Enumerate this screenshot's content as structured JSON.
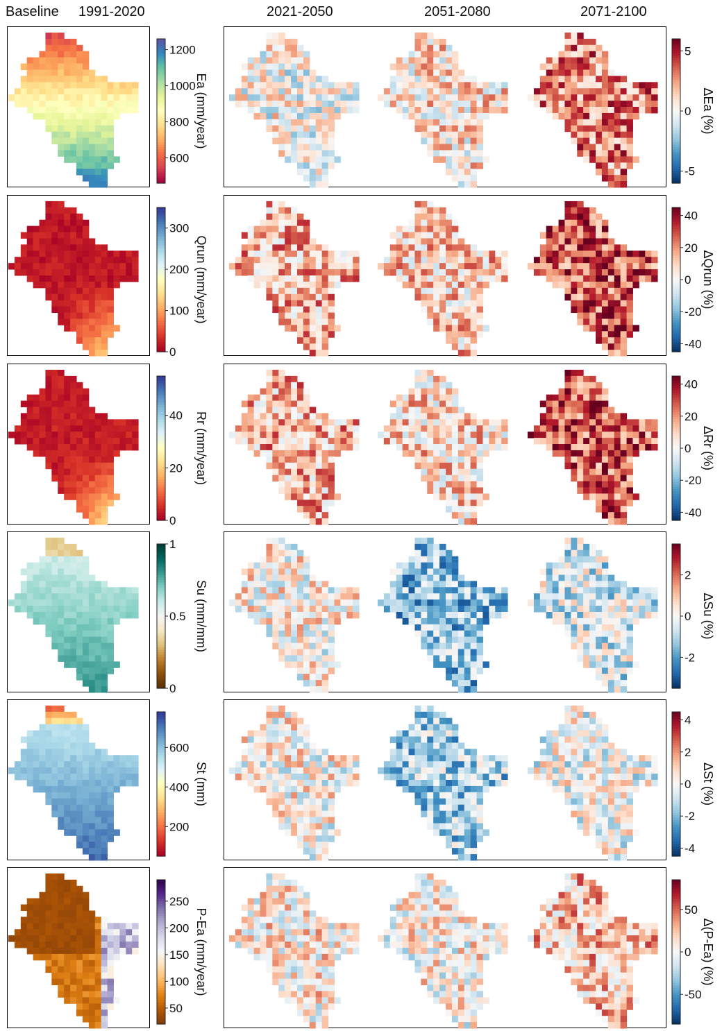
{
  "headers": {
    "baseline": "Baseline",
    "period0": "1991-2020",
    "period1": "2021-2050",
    "period2": "2051-2080",
    "period3": "2071-2100"
  },
  "chart_data": [
    {
      "type": "heatmap",
      "variable": "Ea",
      "baseline": {
        "colorbar_label": "Ea (mm/year)",
        "ticks": [
          "1200",
          "1000",
          "800",
          "600"
        ],
        "tick_values": [
          1200,
          1000,
          800,
          600
        ],
        "range": [
          460,
          1260
        ],
        "colormap": "Spectral"
      },
      "change": {
        "colorbar_label": "ΔEa (%)",
        "ticks": [
          "5",
          "0",
          "-5"
        ],
        "tick_values": [
          5,
          0,
          -5
        ],
        "range": [
          -6,
          6
        ],
        "colormap": "RdBu_r"
      },
      "change_tendency": [
        0.0,
        0.15,
        0.55
      ]
    },
    {
      "type": "heatmap",
      "variable": "Qrun",
      "baseline": {
        "colorbar_label": "Qrun (mm/year)",
        "ticks": [
          "300",
          "200",
          "100",
          "0"
        ],
        "tick_values": [
          300,
          200,
          100,
          0
        ],
        "range": [
          0,
          350
        ],
        "colormap": "RdYlBu"
      },
      "change": {
        "colorbar_label": "ΔQrun (%)",
        "ticks": [
          "40",
          "20",
          "0",
          "-20",
          "-40"
        ],
        "tick_values": [
          40,
          20,
          0,
          -20,
          -40
        ],
        "range": [
          -45,
          45
        ],
        "colormap": "RdBu_r"
      },
      "change_tendency": [
        0.35,
        0.25,
        0.7
      ]
    },
    {
      "type": "heatmap",
      "variable": "Rr",
      "baseline": {
        "colorbar_label": "Rr (mm/year)",
        "ticks": [
          "40",
          "20",
          "0"
        ],
        "tick_values": [
          40,
          20,
          0
        ],
        "range": [
          0,
          55
        ],
        "colormap": "RdYlBu"
      },
      "change": {
        "colorbar_label": "ΔRr (%)",
        "ticks": [
          "40",
          "20",
          "0",
          "-20",
          "-40"
        ],
        "tick_values": [
          40,
          20,
          0,
          -20,
          -40
        ],
        "range": [
          -45,
          45
        ],
        "colormap": "RdBu_r"
      },
      "change_tendency": [
        0.35,
        0.2,
        0.7
      ]
    },
    {
      "type": "heatmap",
      "variable": "Su",
      "baseline": {
        "colorbar_label": "Su (mm/mm)",
        "ticks": [
          "1",
          "0.5",
          "0"
        ],
        "tick_values": [
          1,
          0.5,
          0
        ],
        "range": [
          0,
          1
        ],
        "colormap": "BrBG"
      },
      "change": {
        "colorbar_label": "ΔSu (%)",
        "ticks": [
          "2",
          "0",
          "-2"
        ],
        "tick_values": [
          2,
          0,
          -2
        ],
        "range": [
          -3.5,
          3.5
        ],
        "colormap": "RdBu_r"
      },
      "change_tendency": [
        0.05,
        -0.45,
        -0.15
      ]
    },
    {
      "type": "heatmap",
      "variable": "St",
      "baseline": {
        "colorbar_label": "St (mm)",
        "ticks": [
          "600",
          "400",
          "200"
        ],
        "tick_values": [
          600,
          400,
          200
        ],
        "range": [
          50,
          780
        ],
        "colormap": "RdYlBu"
      },
      "change": {
        "colorbar_label": "ΔSt (%)",
        "ticks": [
          "4",
          "2",
          "0",
          "-2",
          "-4"
        ],
        "tick_values": [
          4,
          2,
          0,
          -2,
          -4
        ],
        "range": [
          -4.5,
          4.5
        ],
        "colormap": "RdBu_r"
      },
      "change_tendency": [
        0.05,
        -0.35,
        -0.05
      ]
    },
    {
      "type": "heatmap",
      "variable": "P-Ea",
      "baseline": {
        "colorbar_label": "P-Ea (mm/year)",
        "ticks": [
          "250",
          "200",
          "150",
          "100",
          "50"
        ],
        "tick_values": [
          250,
          200,
          150,
          100,
          50
        ],
        "range": [
          20,
          290
        ],
        "colormap": "PuOr"
      },
      "change": {
        "colorbar_label": "Δ(P-Ea) (%)",
        "ticks": [
          "50",
          "0",
          "-50"
        ],
        "tick_values": [
          50,
          0,
          -50
        ],
        "range": [
          -85,
          85
        ],
        "colormap": "RdBu_r"
      },
      "change_tendency": [
        0.1,
        0.05,
        0.3
      ]
    }
  ]
}
